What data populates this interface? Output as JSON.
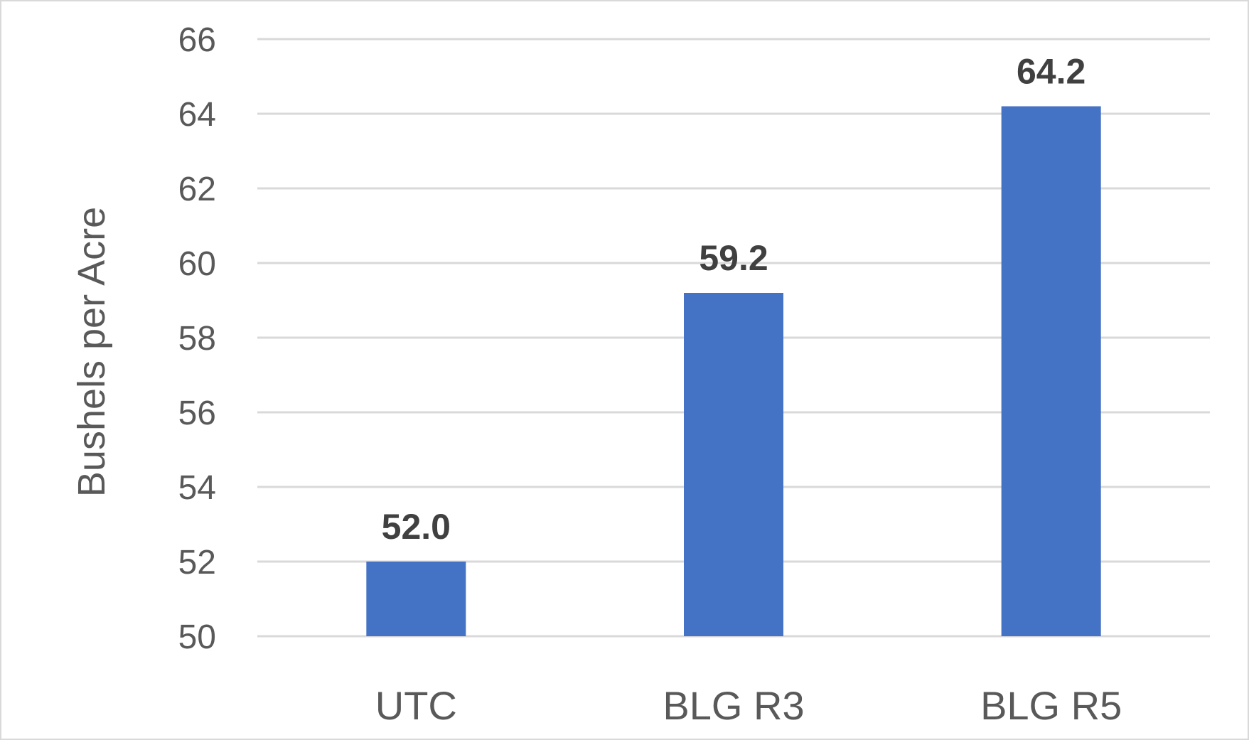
{
  "chart_data": {
    "type": "bar",
    "categories": [
      "UTC",
      "BLG R3",
      "BLG R5"
    ],
    "values": [
      52.0,
      59.2,
      64.2
    ],
    "data_labels": [
      "52.0",
      "59.2",
      "64.2"
    ],
    "title": "",
    "xlabel": "",
    "ylabel": "Bushels per Acre",
    "ylim": [
      50,
      66
    ],
    "yticks": [
      50,
      52,
      54,
      56,
      58,
      60,
      62,
      64,
      66
    ],
    "grid": true,
    "legend": "none",
    "bar_color": "#4472C4",
    "grid_color": "#d9d9d9"
  }
}
